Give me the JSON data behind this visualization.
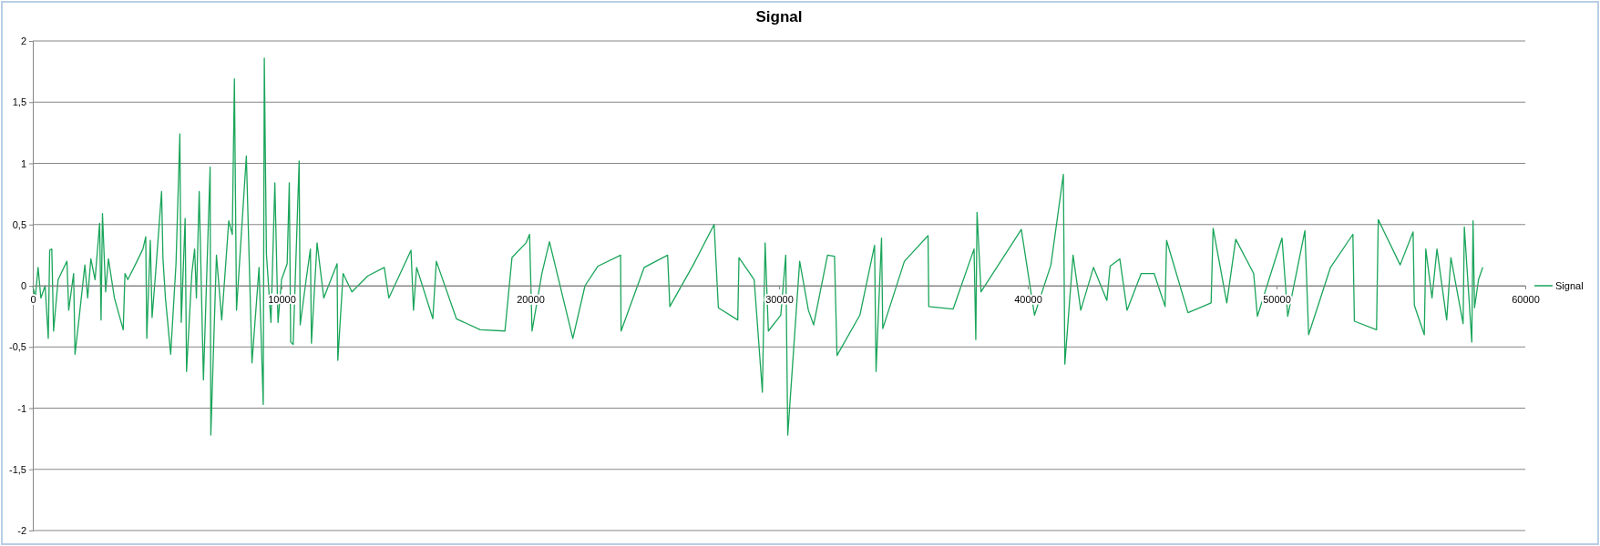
{
  "chart_data": {
    "type": "line",
    "title": "Signal",
    "xlim": [
      0,
      60000
    ],
    "xticks": [
      0,
      10000,
      20000,
      30000,
      40000,
      50000,
      60000
    ],
    "ylim": [
      -2,
      2
    ],
    "yticks": [
      -2,
      {
        "value": -1.5,
        "label": "-1,5"
      },
      -1,
      {
        "value": -0.5,
        "label": "-0,5"
      },
      0,
      {
        "value": 0.5,
        "label": "0,5"
      },
      1,
      {
        "value": 1.5,
        "label": "1,5"
      },
      2
    ],
    "grid": "y",
    "legend": "right",
    "marker": "none",
    "line_style": "solid",
    "series": [
      {
        "name": "Signal",
        "color": "#1aa55a",
        "x": [
          0,
          99,
          212,
          325,
          495,
          622,
          679,
          764,
          835,
          1018,
          1372,
          1443,
          1641,
          1697,
          1853,
          2093,
          2206,
          2334,
          2503,
          2687,
          2744,
          2801,
          2928,
          3041,
          3281,
          3635,
          3706,
          3819,
          4116,
          4427,
          4540,
          4583,
          4724,
          4795,
          4936,
          5177,
          5233,
          5332,
          5544,
          5757,
          5912,
          5969,
          6124,
          6181,
          6393,
          6506,
          6577,
          6690,
          6860,
          7129,
          7157,
          7383,
          7595,
          7878,
          8020,
          8105,
          8189,
          8585,
          8812,
          9095,
          9264,
          9307,
          9392,
          9575,
          9731,
          9858,
          10000,
          10226,
          10311,
          10368,
          10467,
          10707,
          10750,
          10990,
          11160,
          11202,
          11428,
          11697,
          12234,
          12263,
          12475,
          12829,
          13465,
          14130,
          14314,
          15205,
          15304,
          15431,
          16082,
          16223,
          17029,
          17991,
          18981,
          19264,
          19830,
          19971,
          20070,
          20466,
          20770,
          21710,
          22200,
          22720,
          23630,
          23650,
          24580,
          25520,
          25610,
          26550,
          27390,
          27560,
          28340,
          28390,
          29000,
          29330,
          29440,
          29570,
          30070,
          30270,
          30350,
          30830,
          31180,
          31390,
          31950,
          32230,
          32330,
          33250,
          33840,
          33900,
          34120,
          34170,
          35040,
          35990,
          36020,
          37000,
          37840,
          37910,
          37960,
          38120,
          39740,
          40270,
          40930,
          41430,
          41490,
          41820,
          42130,
          42640,
          43180,
          43310,
          43700,
          43990,
          44560,
          45080,
          45520,
          45580,
          46440,
          47370,
          47450,
          48000,
          48360,
          49080,
          49230,
          50220,
          50450,
          51140,
          51290,
          52170,
          53070,
          53130,
          54020,
          54090,
          54970,
          55490,
          55540,
          55940,
          56000,
          56250,
          56450,
          56840,
          57010,
          57500,
          57550,
          57850,
          57900,
          57960,
          58120,
          58290
        ],
        "values": [
          0,
          -0.1,
          0.15,
          -0.1,
          0,
          -0.43,
          0.29,
          0.3,
          -0.37,
          0.05,
          0.2,
          -0.2,
          0.1,
          -0.56,
          -0.28,
          0.17,
          -0.1,
          0.22,
          0.05,
          0.51,
          -0.28,
          0.59,
          -0.05,
          0.22,
          -0.1,
          -0.36,
          0.1,
          0.05,
          0.17,
          0.3,
          0.4,
          -0.43,
          0.37,
          -0.26,
          0.1,
          0.77,
          0.22,
          -0.1,
          -0.56,
          0.18,
          1.24,
          -0.3,
          0.55,
          -0.7,
          0.1,
          0.3,
          -0.1,
          0.77,
          -0.77,
          0.97,
          -1.22,
          0.25,
          -0.28,
          0.53,
          0.42,
          1.69,
          -0.2,
          1.06,
          -0.63,
          0.15,
          -0.97,
          1.86,
          0.26,
          -0.3,
          0.84,
          -0.3,
          0.05,
          0.18,
          0.84,
          -0.46,
          -0.48,
          1.02,
          -0.32,
          0.05,
          0.3,
          -0.47,
          0.35,
          -0.1,
          0.18,
          -0.61,
          0.1,
          -0.05,
          0.08,
          0.15,
          -0.1,
          0.29,
          -0.2,
          0.15,
          -0.27,
          0.2,
          -0.27,
          -0.36,
          -0.37,
          0.23,
          0.35,
          0.42,
          -0.37,
          0.1,
          0.36,
          -0.43,
          0,
          0.16,
          0.25,
          -0.37,
          0.15,
          0.25,
          -0.17,
          0.17,
          0.5,
          -0.18,
          -0.28,
          0.23,
          0.05,
          -0.87,
          0.35,
          -0.37,
          -0.24,
          0.25,
          -1.22,
          0.2,
          -0.2,
          -0.32,
          0.25,
          0.24,
          -0.57,
          -0.24,
          0.33,
          -0.7,
          0.39,
          -0.35,
          0.2,
          0.41,
          -0.17,
          -0.19,
          0.3,
          -0.44,
          0.6,
          -0.05,
          0.46,
          -0.24,
          0.17,
          0.91,
          -0.64,
          0.25,
          -0.2,
          0.15,
          -0.12,
          0.16,
          0.22,
          -0.2,
          0.1,
          0.1,
          -0.17,
          0.37,
          -0.22,
          -0.14,
          0.47,
          -0.14,
          0.38,
          0.1,
          -0.25,
          0.39,
          -0.25,
          0.45,
          -0.4,
          0.15,
          0.42,
          -0.29,
          -0.36,
          0.54,
          0.17,
          0.44,
          -0.16,
          -0.4,
          0.3,
          -0.1,
          0.3,
          -0.28,
          0.23,
          -0.31,
          0.48,
          -0.46,
          0.53,
          -0.18,
          0.05,
          0.15
        ]
      }
    ]
  }
}
